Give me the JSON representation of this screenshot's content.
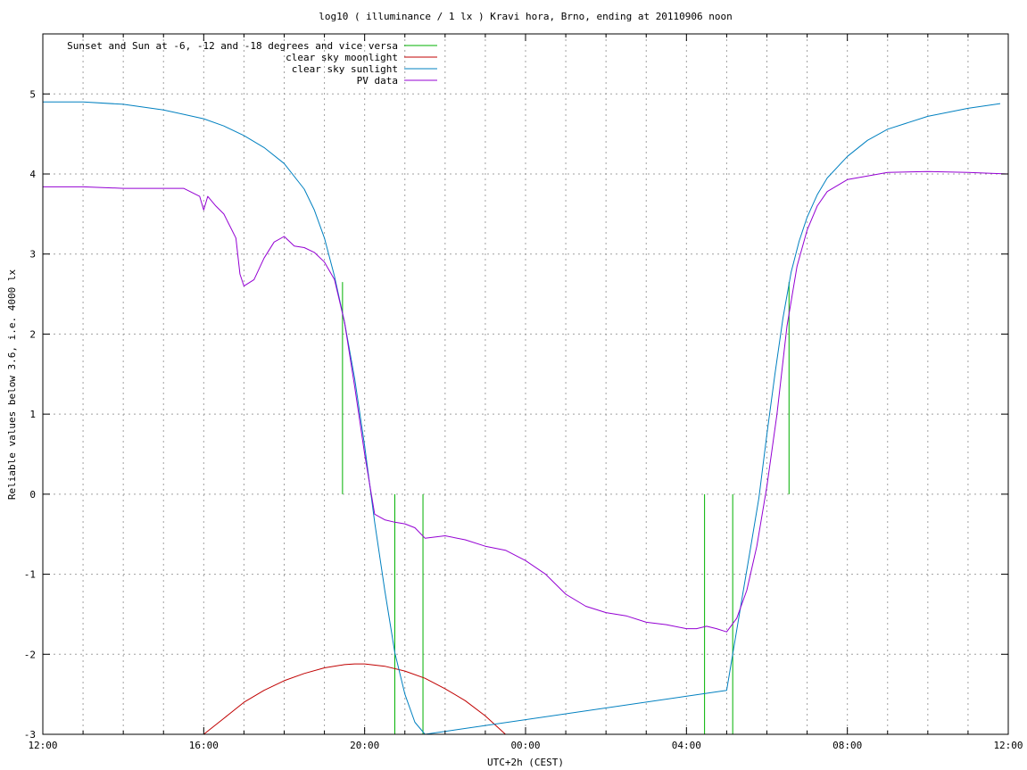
{
  "chart_data": {
    "type": "line",
    "title": "log10 ( illuminance / 1 lx ) Kravi hora, Brno, ending at 20110906 noon",
    "xlabel": "UTC+2h (CEST)",
    "ylabel": "Reliable values below 3.6, i.e. 4000 lx",
    "x_range_hours": [
      12,
      36
    ],
    "ylim": [
      -3,
      5.75
    ],
    "x_ticks": [
      {
        "h": 12,
        "label": "12:00"
      },
      {
        "h": 16,
        "label": "16:00"
      },
      {
        "h": 20,
        "label": "20:00"
      },
      {
        "h": 24,
        "label": "00:00"
      },
      {
        "h": 28,
        "label": "04:00"
      },
      {
        "h": 32,
        "label": "08:00"
      },
      {
        "h": 36,
        "label": "12:00"
      }
    ],
    "y_ticks": [
      {
        "v": -3,
        "label": "-3"
      },
      {
        "v": -2,
        "label": "-2"
      },
      {
        "v": -1,
        "label": "-1"
      },
      {
        "v": 0,
        "label": "0"
      },
      {
        "v": 1,
        "label": "1"
      },
      {
        "v": 2,
        "label": "2"
      },
      {
        "v": 3,
        "label": "3"
      },
      {
        "v": 4,
        "label": "4"
      },
      {
        "v": 5,
        "label": "5"
      }
    ],
    "grid": true,
    "legend_position": "top-left",
    "series": [
      {
        "name": "Sunset and Sun at -6, -12 and -18 degrees and vice versa",
        "kind": "vlines",
        "color": "#00b000",
        "lines": [
          {
            "x": 19.45,
            "y0": 0,
            "y1": 2.65
          },
          {
            "x": 20.75,
            "y0": -3,
            "y1": 0
          },
          {
            "x": 21.45,
            "y0": -3,
            "y1": 0
          },
          {
            "x": 28.45,
            "y0": -3,
            "y1": 0
          },
          {
            "x": 29.15,
            "y0": -3,
            "y1": 0
          },
          {
            "x": 30.55,
            "y0": 0,
            "y1": 2.65
          }
        ]
      },
      {
        "name": "clear sky moonlight",
        "color": "#c00000",
        "x": [
          16,
          16.5,
          17,
          17.5,
          18,
          18.5,
          19,
          19.5,
          19.75,
          20,
          20.5,
          21,
          21.5,
          22,
          22.5,
          23,
          23.5
        ],
        "y": [
          -3,
          -2.8,
          -2.6,
          -2.45,
          -2.33,
          -2.24,
          -2.17,
          -2.13,
          -2.12,
          -2.12,
          -2.15,
          -2.21,
          -2.3,
          -2.43,
          -2.58,
          -2.77,
          -3
        ]
      },
      {
        "name": "clear sky sunlight",
        "color": "#0080c0",
        "x": [
          12,
          13,
          14,
          15,
          16,
          16.5,
          17,
          17.5,
          18,
          18.5,
          18.75,
          19,
          19.25,
          19.5,
          19.75,
          20,
          20.25,
          20.5,
          20.75,
          21,
          21.25,
          21.5,
          29.0,
          29.2,
          29.4,
          29.6,
          29.8,
          30.0,
          30.2,
          30.4,
          30.6,
          30.8,
          31,
          31.25,
          31.5,
          32,
          32.5,
          33,
          34,
          35,
          35.8
        ],
        "y": [
          4.9,
          4.9,
          4.87,
          4.8,
          4.69,
          4.6,
          4.48,
          4.33,
          4.13,
          3.81,
          3.55,
          3.2,
          2.72,
          2.15,
          1.45,
          0.6,
          -0.35,
          -1.2,
          -1.98,
          -2.5,
          -2.85,
          -3.0,
          -2.45,
          -1.85,
          -1.25,
          -0.65,
          -0.05,
          0.75,
          1.5,
          2.2,
          2.77,
          3.16,
          3.46,
          3.74,
          3.95,
          4.22,
          4.42,
          4.56,
          4.72,
          4.82,
          4.88
        ]
      },
      {
        "name": "PV data",
        "color": "#9400d3",
        "x": [
          12,
          13,
          14,
          15,
          15.5,
          15.9,
          16,
          16.1,
          16.3,
          16.5,
          16.8,
          16.9,
          17.0,
          17.25,
          17.5,
          17.75,
          18.0,
          18.25,
          18.5,
          18.75,
          19.0,
          19.25,
          19.5,
          19.75,
          20.0,
          20.25,
          20.5,
          20.75,
          21.0,
          21.25,
          21.5,
          22,
          22.5,
          23,
          23.5,
          24,
          24.5,
          25,
          25.5,
          26,
          26.5,
          27,
          27.5,
          28,
          28.25,
          28.5,
          28.75,
          29.0,
          29.25,
          29.5,
          29.75,
          30.0,
          30.25,
          30.5,
          30.75,
          31,
          31.25,
          31.5,
          32,
          33,
          34,
          35,
          36
        ],
        "y": [
          3.84,
          3.84,
          3.82,
          3.82,
          3.82,
          3.72,
          3.55,
          3.72,
          3.6,
          3.5,
          3.2,
          2.75,
          2.6,
          2.68,
          2.95,
          3.15,
          3.22,
          3.1,
          3.08,
          3.02,
          2.9,
          2.68,
          2.15,
          1.35,
          0.5,
          -0.25,
          -0.32,
          -0.35,
          -0.37,
          -0.42,
          -0.55,
          -0.52,
          -0.57,
          -0.65,
          -0.7,
          -0.83,
          -1.0,
          -1.25,
          -1.4,
          -1.48,
          -1.52,
          -1.6,
          -1.63,
          -1.68,
          -1.68,
          -1.65,
          -1.68,
          -1.72,
          -1.55,
          -1.2,
          -0.65,
          0.1,
          1.0,
          2.1,
          2.85,
          3.3,
          3.6,
          3.78,
          3.93,
          4.02,
          4.03,
          4.02,
          4.0
        ]
      }
    ]
  }
}
